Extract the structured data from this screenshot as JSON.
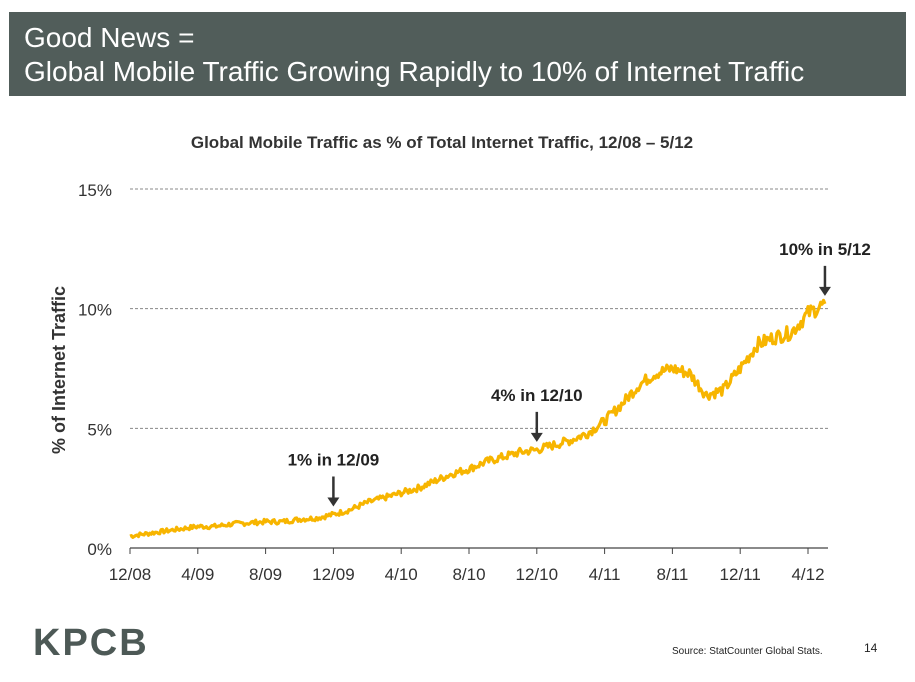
{
  "header": {
    "line1": "Good News =",
    "line2": "Global Mobile Traffic Growing Rapidly to 10% of Internet Traffic"
  },
  "footer": {
    "logo": "KPCB",
    "source": "Source: StatCounter Global Stats.",
    "page": "14"
  },
  "colors": {
    "header_bg": "#515d5a",
    "series": "#f7b500",
    "text": "#333333"
  },
  "chart_data": {
    "type": "line",
    "title": "Global Mobile Traffic as % of Total Internet Traffic, 12/08 – 5/12",
    "xlabel": "",
    "ylabel": "% of Internet Traffic",
    "ylim": [
      0,
      15
    ],
    "y_ticks": [
      "0%",
      "5%",
      "10%",
      "15%"
    ],
    "y_tick_values": [
      0,
      5,
      10,
      15
    ],
    "x_ticks": [
      "12/08",
      "4/09",
      "8/09",
      "12/09",
      "4/10",
      "8/10",
      "12/10",
      "4/11",
      "8/11",
      "12/11",
      "4/12"
    ],
    "grid": true,
    "series": [
      {
        "name": "",
        "x": [
          "12/08",
          "1/09",
          "2/09",
          "3/09",
          "4/09",
          "5/09",
          "6/09",
          "7/09",
          "8/09",
          "9/09",
          "10/09",
          "11/09",
          "12/09",
          "1/10",
          "2/10",
          "3/10",
          "4/10",
          "5/10",
          "6/10",
          "7/10",
          "8/10",
          "9/10",
          "10/10",
          "11/10",
          "12/10",
          "1/11",
          "2/11",
          "3/11",
          "4/11",
          "5/11",
          "6/11",
          "7/11",
          "8/11",
          "9/11",
          "10/11",
          "11/11",
          "12/11",
          "1/12",
          "2/12",
          "3/12",
          "4/12",
          "5/12"
        ],
        "values": [
          0.5,
          0.6,
          0.7,
          0.8,
          0.9,
          0.9,
          1.0,
          1.05,
          1.1,
          1.1,
          1.2,
          1.25,
          1.4,
          1.6,
          1.9,
          2.1,
          2.3,
          2.5,
          2.8,
          3.1,
          3.3,
          3.6,
          3.8,
          4.0,
          4.1,
          4.3,
          4.5,
          4.8,
          5.3,
          6.0,
          6.8,
          7.3,
          7.5,
          7.3,
          6.4,
          6.6,
          7.5,
          8.5,
          8.8,
          9.0,
          9.8,
          10.2
        ]
      }
    ],
    "annotations": [
      {
        "text": "1% in 12/09",
        "x": "12/09",
        "y": 1.4
      },
      {
        "text": "4% in 12/10",
        "x": "12/10",
        "y": 4.1
      },
      {
        "text": "10% in 5/12",
        "x": "5/12",
        "y": 10.2
      }
    ]
  }
}
